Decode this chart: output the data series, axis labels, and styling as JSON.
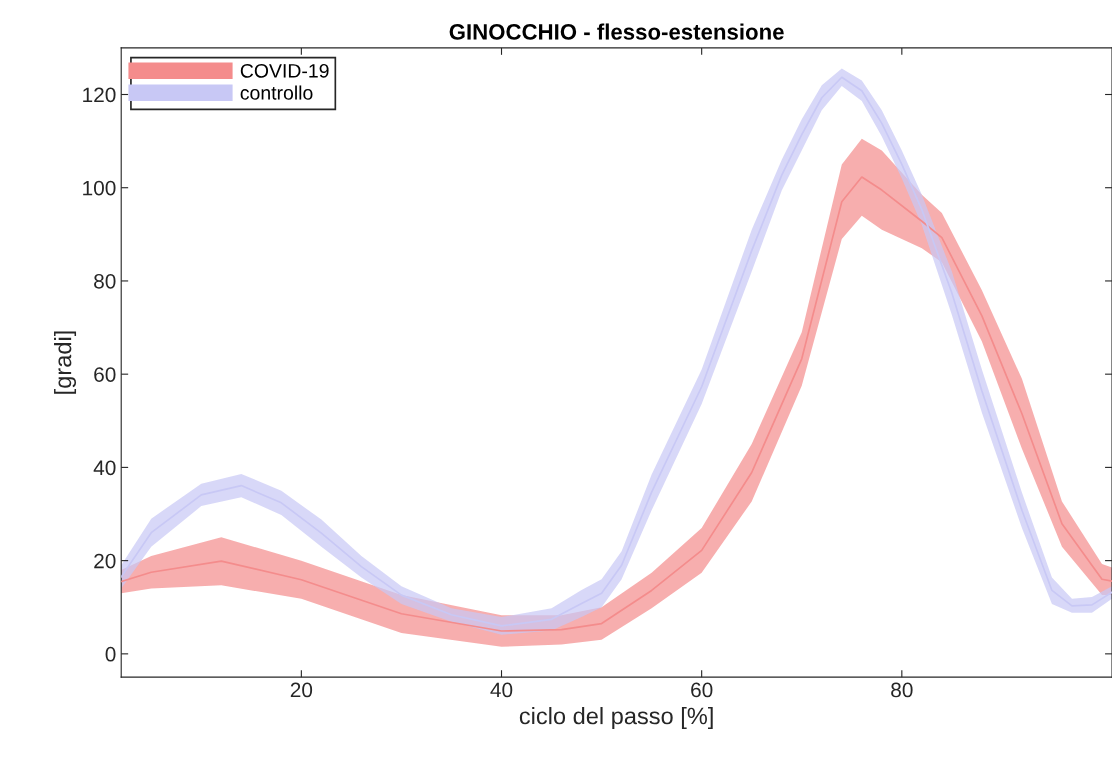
{
  "chart_data": {
    "type": "line",
    "title": "GINOCCHIO - flesso-estensione",
    "xlabel": "ciclo del passo [%]",
    "ylabel": "[gradi]",
    "xlim": [
      2,
      101
    ],
    "ylim": [
      -5,
      130
    ],
    "xticks": [
      20,
      40,
      60,
      80
    ],
    "yticks": [
      0,
      20,
      40,
      60,
      80,
      100,
      120
    ],
    "grid": false,
    "legend": "top left",
    "series": [
      {
        "name": "COVID-19",
        "color": "#f48c8c",
        "x": [
          2,
          5,
          12,
          20,
          30,
          40,
          46,
          50,
          55,
          60,
          65,
          70,
          74,
          76,
          78,
          82,
          84,
          88,
          92,
          96,
          100,
          101
        ],
        "values": [
          15.5,
          17.5,
          19.9,
          15.9,
          8.6,
          4.9,
          5.2,
          6.5,
          13.6,
          22.2,
          38.9,
          63.3,
          97,
          102.3,
          99.5,
          92.8,
          89.3,
          72.5,
          51.5,
          27.9,
          16,
          15.6
        ],
        "upper": [
          18,
          21,
          25,
          20,
          12.6,
          8.3,
          8.3,
          10,
          17.4,
          27,
          45,
          69,
          105,
          110.5,
          108,
          98.5,
          94.6,
          78,
          59,
          32.7,
          19.3,
          18.5
        ],
        "lower": [
          13,
          14,
          14.7,
          11.8,
          4.5,
          1.5,
          2,
          3,
          9.8,
          17.4,
          32.7,
          57.5,
          89,
          94,
          91,
          87,
          84,
          67,
          44,
          23,
          12.6,
          12.6
        ]
      },
      {
        "name": "controllo",
        "color": "#c8c8f5",
        "x": [
          2,
          5,
          10,
          14,
          18,
          22,
          26,
          30,
          35,
          40,
          45,
          48,
          50,
          52,
          55,
          60,
          65,
          68,
          70,
          72,
          74,
          76,
          78,
          80,
          82,
          85,
          88,
          92,
          95,
          97,
          99,
          101
        ],
        "values": [
          16.5,
          26,
          34.1,
          36.1,
          32.4,
          25.9,
          18.7,
          12.6,
          8.4,
          6,
          7.4,
          10.8,
          13,
          19,
          34.7,
          57.3,
          86.5,
          102.7,
          111.4,
          119.3,
          123.7,
          120.8,
          113.8,
          105,
          95.3,
          77.4,
          56.4,
          30.8,
          13.6,
          10.3,
          10.5,
          13.2
        ],
        "upper": [
          19,
          29,
          36.5,
          38.6,
          35,
          28.8,
          21,
          14.5,
          9.8,
          7.9,
          9.8,
          13.7,
          16,
          22,
          38.5,
          61,
          91,
          106,
          114.7,
          122,
          125.6,
          123,
          116.6,
          108,
          98.5,
          82,
          61,
          34.6,
          16.4,
          11.8,
          12.2,
          14.5
        ],
        "lower": [
          14,
          23,
          31.7,
          33.6,
          29.8,
          23,
          16.4,
          10.7,
          6.9,
          4.1,
          5,
          7.9,
          10,
          16,
          30.8,
          53.6,
          82,
          99.4,
          108,
          116.6,
          121.8,
          118.6,
          111,
          102,
          92,
          72.7,
          51.7,
          27,
          10.7,
          8.8,
          8.8,
          11.8
        ]
      }
    ]
  }
}
